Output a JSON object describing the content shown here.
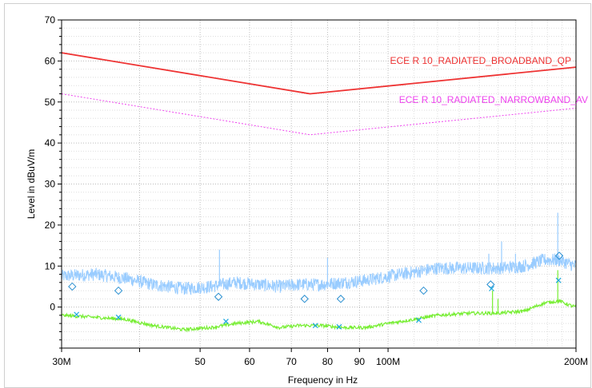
{
  "chart_data": {
    "type": "line",
    "xlabel": "Frequency in Hz",
    "ylabel": "Level in dBuV/m",
    "x_scale": "log",
    "xlim": [
      30000000,
      200000000
    ],
    "ylim": [
      -10,
      70
    ],
    "x_ticks": [
      {
        "value": 30000000,
        "label": "30M"
      },
      {
        "value": 50000000,
        "label": "50"
      },
      {
        "value": 60000000,
        "label": "60"
      },
      {
        "value": 70000000,
        "label": "70"
      },
      {
        "value": 80000000,
        "label": "80"
      },
      {
        "value": 90000000,
        "label": "90"
      },
      {
        "value": 100000000,
        "label": "100M"
      },
      {
        "value": 200000000,
        "label": "200M"
      }
    ],
    "y_ticks": [
      0,
      10,
      20,
      30,
      40,
      50,
      60,
      70
    ],
    "grid": true,
    "colors": {
      "broadband_limit": "#ee3333",
      "narrowband_limit": "#ee44ee",
      "peak_trace": "#99ccff",
      "average_trace": "#77ee33",
      "qp_markers": "#2a8fd0",
      "av_markers": "#1aa6e0"
    },
    "series": [
      {
        "name": "ECE R 10_RADIATED_BROADBAND_QP",
        "style": "solid",
        "x": [
          30000000,
          75000000,
          200000000
        ],
        "y": [
          62,
          52,
          58.5
        ]
      },
      {
        "name": "ECE R 10_RADIATED_NARROWBAND_AV",
        "style": "dotted",
        "x": [
          30000000,
          75000000,
          200000000
        ],
        "y": [
          52,
          42,
          48.5
        ]
      },
      {
        "style": "noisy",
        "x": [
          30000000,
          34000000,
          38000000,
          42000000,
          47000000,
          52000000,
          57000000,
          62000000,
          67000000,
          72000000,
          78000000,
          85000000,
          92000000,
          100000000,
          110000000,
          120000000,
          135000000,
          150000000,
          165000000,
          178000000,
          188000000,
          195000000,
          200000000
        ],
        "y": [
          7.5,
          8,
          7,
          5.5,
          4.5,
          5,
          6,
          5.5,
          5,
          5.5,
          5.5,
          6,
          6.5,
          7.5,
          8.5,
          9.5,
          9.5,
          9.5,
          10,
          11.5,
          11.5,
          10.5,
          10
        ]
      },
      {
        "style": "noisy",
        "x": [
          30000000,
          34000000,
          38000000,
          42000000,
          47000000,
          52000000,
          57000000,
          62000000,
          67000000,
          72000000,
          78000000,
          85000000,
          92000000,
          100000000,
          110000000,
          120000000,
          135000000,
          150000000,
          165000000,
          178000000,
          188000000,
          195000000,
          200000000
        ],
        "y": [
          -2,
          -2.5,
          -3,
          -4.5,
          -5.5,
          -5,
          -4,
          -3.5,
          -5,
          -4.5,
          -4.5,
          -5,
          -5,
          -4,
          -3,
          -2,
          -1.5,
          -1.5,
          -1,
          1,
          1.5,
          0.5,
          0
        ]
      }
    ],
    "spikes": [
      {
        "x": 53700000,
        "y_top": 14
      },
      {
        "x": 80000000,
        "y_top": 12
      },
      {
        "x": 145000000,
        "y_top": 13
      },
      {
        "x": 152000000,
        "y_top": 16
      },
      {
        "x": 160000000,
        "y_top": 13
      },
      {
        "x": 187000000,
        "y_top": 23
      },
      {
        "x": 147000000,
        "y_top": 4,
        "series": 3
      },
      {
        "x": 150000000,
        "y_top": 2,
        "series": 3
      },
      {
        "x": 187000000,
        "y_top": 9,
        "series": 3
      }
    ],
    "qp_markers": [
      {
        "x": 31200000,
        "y": 5
      },
      {
        "x": 37000000,
        "y": 4
      },
      {
        "x": 53500000,
        "y": 2.5
      },
      {
        "x": 73500000,
        "y": 2
      },
      {
        "x": 84000000,
        "y": 2
      },
      {
        "x": 114000000,
        "y": 4
      },
      {
        "x": 146000000,
        "y": 5.5
      },
      {
        "x": 188000000,
        "y": 12.5
      }
    ],
    "av_markers": [
      {
        "x": 31700000,
        "y": -1.8
      },
      {
        "x": 37000000,
        "y": -2.5
      },
      {
        "x": 55000000,
        "y": -3.5
      },
      {
        "x": 76500000,
        "y": -4.5
      },
      {
        "x": 83500000,
        "y": -4.8
      },
      {
        "x": 112000000,
        "y": -3.2
      },
      {
        "x": 146500000,
        "y": 4.5
      },
      {
        "x": 187500000,
        "y": 6.5
      }
    ]
  }
}
